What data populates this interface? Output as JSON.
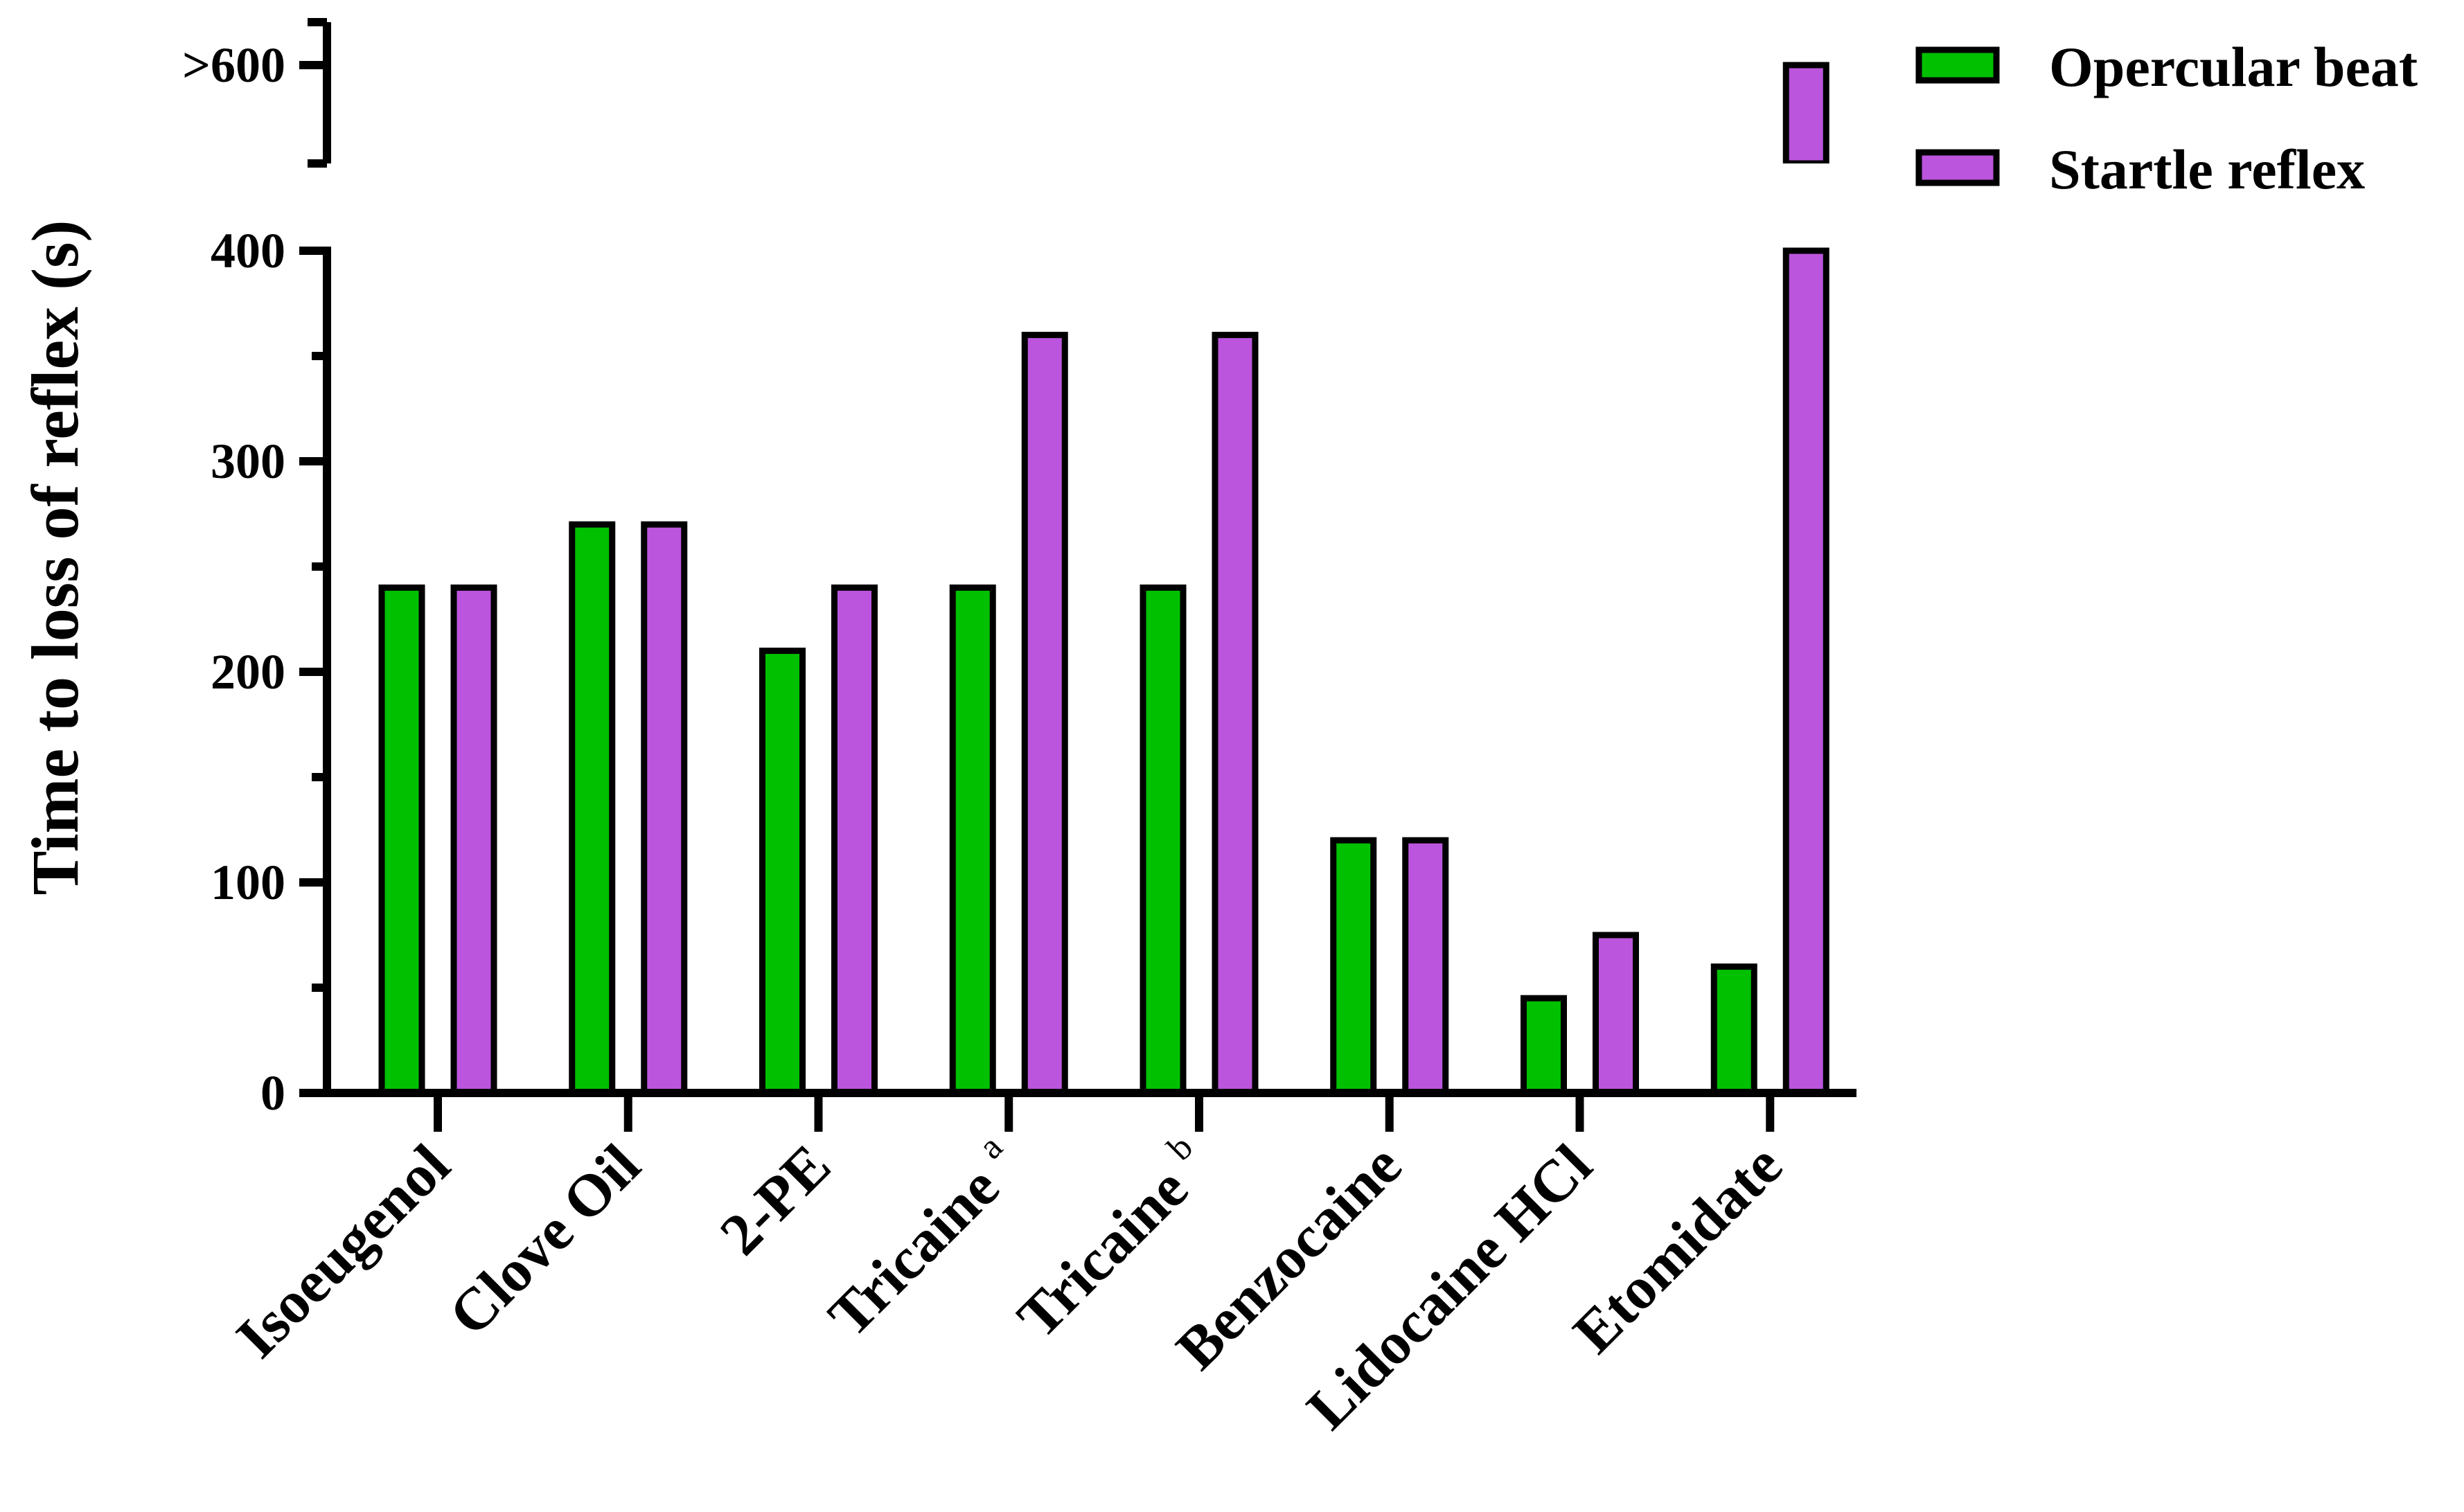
{
  "chart_data": {
    "type": "bar",
    "title": "",
    "xlabel": "",
    "ylabel": "Time to loss of reflex (s)",
    "categories": [
      {
        "label": "Isoeugenol",
        "sup": ""
      },
      {
        "label": "Clove Oil",
        "sup": ""
      },
      {
        "label": "2-PE",
        "sup": ""
      },
      {
        "label": "Tricaine",
        "sup": "a"
      },
      {
        "label": "Tricaine",
        "sup": "b"
      },
      {
        "label": "Benzocaine",
        "sup": ""
      },
      {
        "label": "Lidocaine HCl",
        "sup": ""
      },
      {
        "label": "Etomidate",
        "sup": ""
      }
    ],
    "series": [
      {
        "name": "Opercular beat",
        "color": "#00c000",
        "values": [
          240,
          270,
          210,
          240,
          240,
          120,
          45,
          60
        ]
      },
      {
        "name": "Startle reflex",
        "color": "#bb55dd",
        "values": [
          240,
          270,
          240,
          360,
          360,
          120,
          75,
          600
        ]
      }
    ],
    "y_segments": [
      {
        "range": [
          0,
          400
        ],
        "ticks": [
          "0",
          "100",
          "200",
          "300",
          "400"
        ],
        "tick_values": [
          0,
          100,
          200,
          300,
          400
        ]
      },
      {
        "range": [
          400,
          640
        ],
        "ticks": [
          ">600"
        ],
        "tick_values": [
          600
        ]
      }
    ],
    "axis_break": true,
    "legend_position": "top-right",
    "grid": false
  }
}
